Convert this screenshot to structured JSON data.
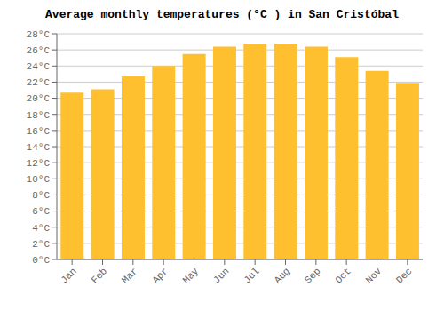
{
  "chart_data": {
    "type": "bar",
    "title": "Average monthly temperatures (°C ) in San Cristóbal",
    "categories": [
      "Jan",
      "Feb",
      "Mar",
      "Apr",
      "May",
      "Jun",
      "Jul",
      "Aug",
      "Sep",
      "Oct",
      "Nov",
      "Dec"
    ],
    "values": [
      20.7,
      21.1,
      22.7,
      24.0,
      25.5,
      26.4,
      26.8,
      26.8,
      26.4,
      25.1,
      23.4,
      21.9
    ],
    "color": "#FFC030",
    "ylim": [
      0,
      28
    ],
    "yticks": [
      {
        "value": 0,
        "label": "0°C"
      },
      {
        "value": 2,
        "label": "2°C"
      },
      {
        "value": 4,
        "label": "4°C"
      },
      {
        "value": 6,
        "label": "6°C"
      },
      {
        "value": 8,
        "label": "8°C"
      },
      {
        "value": 10,
        "label": "10°C"
      },
      {
        "value": 12,
        "label": "12°C"
      },
      {
        "value": 14,
        "label": "14°C"
      },
      {
        "value": 16,
        "label": "16°C"
      },
      {
        "value": 18,
        "label": "18°C"
      },
      {
        "value": 20,
        "label": "20°C"
      },
      {
        "value": 22,
        "label": "22°C"
      },
      {
        "value": 24,
        "label": "24°C"
      },
      {
        "value": 26,
        "label": "26°C"
      },
      {
        "value": 28,
        "label": "28°C"
      }
    ],
    "grid": true
  }
}
